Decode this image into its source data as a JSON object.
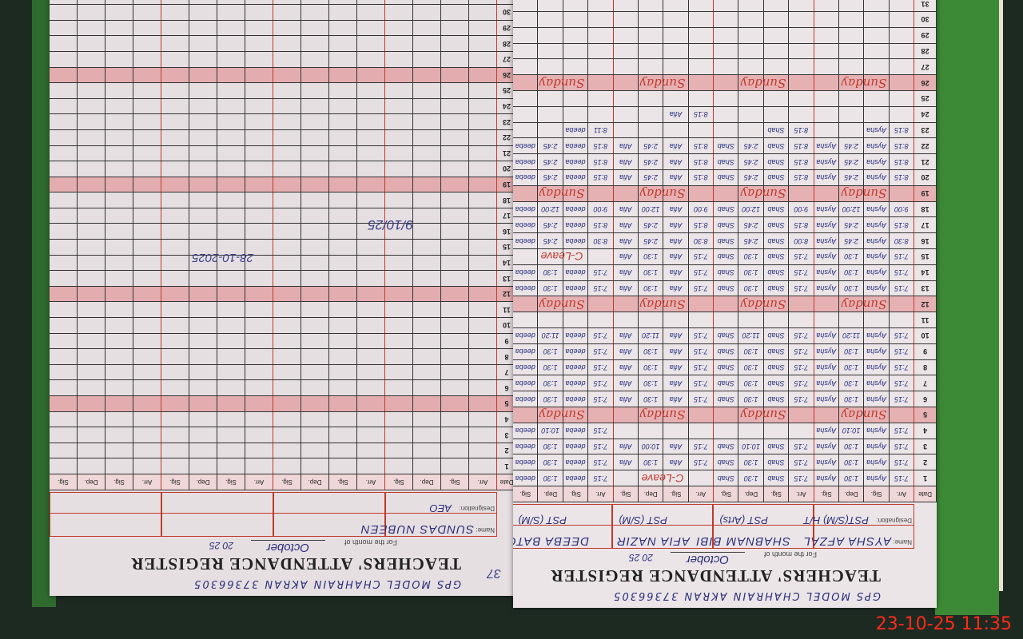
{
  "timestamp": "23-10-25  11:35",
  "common": {
    "title": "TEACHERS' ATTENDANCE REGISTER",
    "school": "GPS MODEL CHAHRAIN AKRAN 37366305",
    "month_label": "For the month of",
    "month": "October",
    "year": "20 25",
    "name_label": "Name:",
    "designation_label": "Designation:",
    "date_label": "Date",
    "col_headers": [
      "Arr.",
      "Sig.",
      "Dep.",
      "Sig."
    ],
    "sunday_label": "Sunday",
    "sundays": [
      5,
      12,
      19,
      26
    ],
    "days": [
      1,
      2,
      3,
      4,
      5,
      6,
      7,
      8,
      9,
      10,
      11,
      12,
      13,
      14,
      15,
      16,
      17,
      18,
      19,
      20,
      21,
      22,
      23,
      24,
      25,
      26,
      27,
      28,
      29,
      30,
      31
    ]
  },
  "left_page": {
    "page_number": "37",
    "teachers": [
      {
        "name": "SUNDAS NUBEEN",
        "designation": "AEO"
      },
      {
        "name": "",
        "designation": ""
      },
      {
        "name": "",
        "designation": ""
      },
      {
        "name": "",
        "designation": ""
      }
    ],
    "stamp_date": "9/10/25",
    "signature_date": "28-10-2025"
  },
  "right_page": {
    "teachers": [
      {
        "name": "AYSHA AFZAL",
        "designation": "PST(S/M) H/T",
        "entries": {
          "1": [
            "7:15",
            "Aysha",
            "1:30",
            "Aysha"
          ],
          "2": [
            "7:15",
            "Aysha",
            "1:30",
            "Aysha"
          ],
          "3": [
            "7:15",
            "Aysha",
            "1:30",
            "Aysha"
          ],
          "4": [
            "7:15",
            "Aysha",
            "10:10",
            "Aysha"
          ],
          "6": [
            "7:15",
            "Aysha",
            "1:30",
            "Aysha"
          ],
          "7": [
            "7:15",
            "Aysha",
            "1:30",
            "Aysha"
          ],
          "8": [
            "7:15",
            "Aysha",
            "1:30",
            "Aysha"
          ],
          "9": [
            "7:15",
            "Aysha",
            "1:30",
            "Aysha"
          ],
          "10": [
            "7:15",
            "Aysha",
            "11:20",
            "Aysha"
          ],
          "13": [
            "7:15",
            "Aysha",
            "1:30",
            "Aysha"
          ],
          "14": [
            "7:15",
            "Aysha",
            "1:30",
            "Aysha"
          ],
          "15": [
            "7:15",
            "Aysha",
            "1:30",
            "Aysha"
          ],
          "16": [
            "8:30",
            "Aysha",
            "2:45",
            "Aysha"
          ],
          "17": [
            "8:15",
            "Aysha",
            "2:45",
            "Aysha"
          ],
          "18": [
            "9:00",
            "Aysha",
            "12:00",
            "Aysha"
          ],
          "20": [
            "8:15",
            "Aysha",
            "2:45",
            "Aysha"
          ],
          "21": [
            "8:15",
            "Aysha",
            "2:45",
            "Aysha"
          ],
          "22": [
            "8:15",
            "Aysha",
            "2:45",
            "Aysha"
          ],
          "23": [
            "8:15",
            "Aysha",
            "",
            ""
          ]
        }
      },
      {
        "name": "SHABNAM BIBI",
        "designation": "PST (Arts)",
        "entries": {
          "1": [
            "7:15",
            "Shab",
            "1:30",
            "Shab"
          ],
          "2": [
            "7:15",
            "Shab",
            "1:30",
            "Shab"
          ],
          "3": [
            "7:15",
            "Shab",
            "10:10",
            "Shab"
          ],
          "6": [
            "7:15",
            "Shab",
            "1:30",
            "Shab"
          ],
          "7": [
            "7:15",
            "Shab",
            "1:30",
            "Shab"
          ],
          "8": [
            "7:15",
            "Shab",
            "1:30",
            "Shab"
          ],
          "9": [
            "7:15",
            "Shab",
            "1:30",
            "Shab"
          ],
          "10": [
            "7:15",
            "Shab",
            "11:20",
            "Shab"
          ],
          "13": [
            "7:15",
            "Shab",
            "1:30",
            "Shab"
          ],
          "14": [
            "7:15",
            "Shab",
            "1:30",
            "Shab"
          ],
          "15": [
            "7:15",
            "Shab",
            "1:30",
            "Shab"
          ],
          "16": [
            "8:00",
            "Shab",
            "2:45",
            "Shab"
          ],
          "17": [
            "8:15",
            "Shab",
            "2:45",
            "Shab"
          ],
          "18": [
            "9:00",
            "Shab",
            "12:00",
            "Shab"
          ],
          "20": [
            "8:15",
            "Shab",
            "2:45",
            "Shab"
          ],
          "21": [
            "8:15",
            "Shab",
            "2:45",
            "Shab"
          ],
          "22": [
            "8:15",
            "Shab",
            "2:45",
            "Shab"
          ],
          "23": [
            "8:15",
            "Shab",
            "",
            ""
          ]
        }
      },
      {
        "name": "AFIA NAZIR",
        "designation": "PST (S/M)",
        "entries": {
          "1": [
            "C-Leave"
          ],
          "2": [
            "7:15",
            "Afia",
            "1:30",
            "Afia"
          ],
          "3": [
            "7:15",
            "Afia",
            "10:00",
            "Afia"
          ],
          "6": [
            "7:15",
            "Afia",
            "1:30",
            "Afia"
          ],
          "7": [
            "7:15",
            "Afia",
            "1:30",
            "Afia"
          ],
          "8": [
            "7:15",
            "Afia",
            "1:30",
            "Afia"
          ],
          "9": [
            "7:15",
            "Afia",
            "1:30",
            "Afia"
          ],
          "10": [
            "7:15",
            "Afia",
            "11:20",
            "Afia"
          ],
          "13": [
            "7:15",
            "Afia",
            "1:30",
            "Afia"
          ],
          "14": [
            "7:15",
            "Afia",
            "1:30",
            "Afia"
          ],
          "15": [
            "7:15",
            "Afia",
            "1:30",
            "Afia"
          ],
          "16": [
            "8:30",
            "Afia",
            "2:45",
            "Afia"
          ],
          "17": [
            "8:15",
            "Afia",
            "2:45",
            "Afia"
          ],
          "18": [
            "9:00",
            "Afia",
            "12:00",
            "Afia"
          ],
          "20": [
            "8:15",
            "Afia",
            "2:45",
            "Afia"
          ],
          "21": [
            "8:15",
            "Afia",
            "2:45",
            "Afia"
          ],
          "22": [
            "8:15",
            "Afia",
            "2:45",
            "Afia"
          ],
          "24": [
            "8:15",
            "Afia",
            "",
            ""
          ]
        }
      },
      {
        "name": "DEEBA BATOOL",
        "designation": "PST (S/M)",
        "entries": {
          "1": [
            "7:15",
            "deeba",
            "1:30",
            "deeba"
          ],
          "2": [
            "7:15",
            "deeba",
            "1:30",
            "deeba"
          ],
          "3": [
            "7:15",
            "deeba",
            "1:30",
            "deeba"
          ],
          "4": [
            "7:15",
            "deeba",
            "10:10",
            "deeba"
          ],
          "6": [
            "7:15",
            "deeba",
            "1:30",
            "deeba"
          ],
          "7": [
            "7:15",
            "deeba",
            "1:30",
            "deeba"
          ],
          "8": [
            "7:15",
            "deeba",
            "1:30",
            "deeba"
          ],
          "9": [
            "7:15",
            "deeba",
            "1:30",
            "deeba"
          ],
          "10": [
            "7:15",
            "deeba",
            "11:20",
            "deeba"
          ],
          "13": [
            "7:15",
            "deeba",
            "1:30",
            "deeba"
          ],
          "14": [
            "7:15",
            "deeba",
            "1:30",
            "deeba"
          ],
          "15": [
            "C-Leave"
          ],
          "16": [
            "8:30",
            "deeba",
            "2:45",
            "deeba"
          ],
          "17": [
            "8:15",
            "deeba",
            "2:45",
            "deeba"
          ],
          "18": [
            "9:00",
            "deeba",
            "12:00",
            "deeba"
          ],
          "20": [
            "8:15",
            "deeba",
            "2:45",
            "deeba"
          ],
          "21": [
            "8:15",
            "deeba",
            "2:45",
            "deeba"
          ],
          "22": [
            "8:15",
            "deeba",
            "2:45",
            "deeba"
          ],
          "23": [
            "8:11",
            "deeba",
            "",
            ""
          ]
        }
      }
    ]
  },
  "colors": {
    "ink": "#263080",
    "red_ink": "#c0392b",
    "paper": "#e6dfe2",
    "binding": "#3d8a36",
    "timestamp": "#ff2a1a"
  }
}
